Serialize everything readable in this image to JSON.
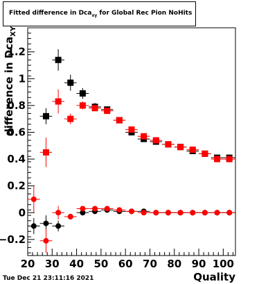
{
  "title": {
    "prefix": "Fitted difference in Dca",
    "subscript": "xy",
    "suffix": " for Global Rec Pion NoHits"
  },
  "axis_labels": {
    "x": "Quality",
    "y_prefix": "difference in Dca",
    "y_subscript": "XY"
  },
  "timestamp": "Tue Dec 21 23:11:16 2021",
  "chart_data": {
    "type": "scatter",
    "xlim": [
      20,
      105
    ],
    "ylim": [
      -0.32,
      1.38
    ],
    "xticks": [
      20,
      30,
      40,
      50,
      60,
      70,
      80,
      90,
      100
    ],
    "xtick_labels": [
      "20",
      "30",
      "40",
      "50",
      "60",
      "70",
      "80",
      "90",
      "100"
    ],
    "yticks": [
      -0.2,
      0,
      0.2,
      0.4,
      0.6,
      0.8,
      1,
      1.2
    ],
    "ytick_labels": [
      "−0.2",
      "0",
      "0.2",
      "0.4",
      "0.6",
      "0.8",
      "1",
      "1.2"
    ],
    "colors": {
      "black": "#000000",
      "red": "#ff0000"
    },
    "series": [
      {
        "color": "#000000",
        "marker": "square",
        "x": [
          27.5,
          32.5,
          37.5,
          42.5,
          47.5,
          52.5,
          57.5,
          62.5,
          67.5,
          72.5,
          77.5,
          82.5,
          87.5,
          92.5,
          97.5,
          102.5
        ],
        "y": [
          0.72,
          1.14,
          0.97,
          0.89,
          0.79,
          0.77,
          0.69,
          0.6,
          0.55,
          0.53,
          0.51,
          0.49,
          0.46,
          0.44,
          0.41,
          0.41
        ],
        "yerr": [
          0.06,
          0.08,
          0.06,
          0.04,
          0.03,
          0.02,
          0.02,
          0.015,
          0.015,
          0.01,
          0.01,
          0.01,
          0.01,
          0.01,
          0.01,
          0.01
        ]
      },
      {
        "color": "#ff0000",
        "marker": "square",
        "x": [
          27.5,
          32.5,
          37.5,
          42.5,
          47.5,
          52.5,
          57.5,
          62.5,
          67.5,
          72.5,
          77.5,
          82.5,
          87.5,
          92.5,
          97.5,
          102.5
        ],
        "y": [
          0.45,
          0.83,
          0.7,
          0.8,
          0.78,
          0.76,
          0.69,
          0.62,
          0.57,
          0.54,
          0.51,
          0.49,
          0.47,
          0.44,
          0.4,
          0.4
        ],
        "yerr": [
          0.11,
          0.09,
          0.04,
          0.03,
          0.02,
          0.02,
          0.02,
          0.015,
          0.015,
          0.01,
          0.01,
          0.01,
          0.01,
          0.01,
          0.01,
          0.01
        ]
      },
      {
        "color": "#000000",
        "marker": "circle",
        "x": [
          22.5,
          27.5,
          32.5,
          37.5,
          42.5,
          47.5,
          52.5,
          57.5,
          62.5,
          67.5,
          72.5,
          77.5,
          82.5,
          87.5,
          92.5,
          97.5,
          102.5
        ],
        "y": [
          -0.1,
          -0.08,
          -0.1,
          -0.03,
          0.0,
          0.01,
          0.02,
          0.01,
          0.01,
          0.01,
          0.0,
          0.0,
          0.0,
          0.0,
          0.0,
          0.0,
          0.0
        ],
        "yerr": [
          0.06,
          0.06,
          0.04,
          0.02,
          0.01,
          0.01,
          0.01,
          0.01,
          0.005,
          0.005,
          0.005,
          0.005,
          0.005,
          0.005,
          0.005,
          0.005,
          0.005
        ]
      },
      {
        "color": "#ff0000",
        "marker": "circle",
        "x": [
          22.5,
          27.5,
          32.5,
          37.5,
          42.5,
          47.5,
          52.5,
          57.5,
          62.5,
          67.5,
          72.5,
          77.5,
          82.5,
          87.5,
          92.5,
          97.5,
          102.5
        ],
        "y": [
          0.1,
          -0.21,
          0.0,
          -0.03,
          0.03,
          0.03,
          0.03,
          0.02,
          0.01,
          0.0,
          0.0,
          0.0,
          0.0,
          0.0,
          0.0,
          0.0,
          0.0
        ],
        "yerr": [
          0.1,
          0.09,
          0.05,
          0.02,
          0.01,
          0.01,
          0.01,
          0.01,
          0.005,
          0.005,
          0.005,
          0.005,
          0.005,
          0.005,
          0.005,
          0.005,
          0.005
        ]
      }
    ]
  }
}
